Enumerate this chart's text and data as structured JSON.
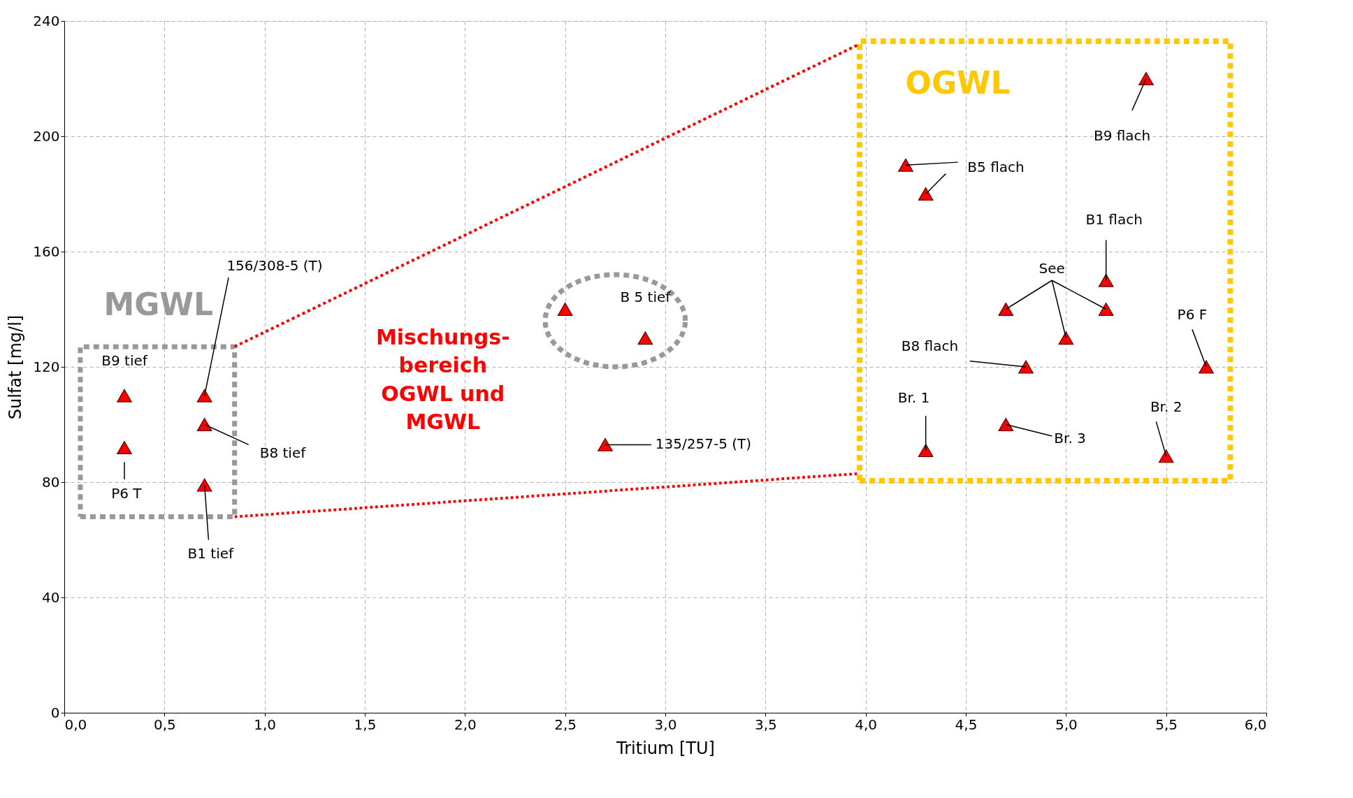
{
  "chart_data": {
    "type": "scatter",
    "xlabel": "Tritium [TU]",
    "ylabel": "Sulfat [mg/l]",
    "x": [
      0.3,
      0.3,
      0.7,
      0.7,
      0.7,
      2.5,
      2.9,
      2.7,
      4.2,
      4.3,
      5.4,
      5.2,
      4.7,
      5.0,
      5.2,
      4.8,
      5.7,
      4.3,
      4.7,
      5.5
    ],
    "series": [
      {
        "color": "#ff0000",
        "values": [
          110,
          92,
          110,
          100,
          79,
          140,
          130,
          93,
          190,
          180,
          220,
          150,
          140,
          130,
          140,
          120,
          120,
          91,
          100,
          89
        ]
      }
    ],
    "marker": "triangle",
    "grid": true,
    "legend": false,
    "xlim": [
      0,
      6
    ],
    "ylim": [
      0,
      240
    ],
    "xticks": [
      {
        "value": 0,
        "label": "0,0"
      },
      {
        "value": 0.5,
        "label": "0,5"
      },
      {
        "value": 1,
        "label": "1,0"
      },
      {
        "value": 1.5,
        "label": "1,5"
      },
      {
        "value": 2,
        "label": "2,0"
      },
      {
        "value": 2.5,
        "label": "2,5"
      },
      {
        "value": 3,
        "label": "3,0"
      },
      {
        "value": 3.5,
        "label": "3,5"
      },
      {
        "value": 4,
        "label": "4,0"
      },
      {
        "value": 4.5,
        "label": "4,5"
      },
      {
        "value": 5,
        "label": "5,0"
      },
      {
        "value": 5.5,
        "label": "5,5"
      },
      {
        "value": 6,
        "label": "6,0"
      }
    ],
    "yticks": [
      0,
      40,
      80,
      120,
      160,
      200,
      240
    ],
    "annotations": [
      {
        "text": "B9 tief",
        "x": 0.3,
        "y": 110
      },
      {
        "text": "P6 T",
        "x": 0.3,
        "y": 92
      },
      {
        "text": "156/308-5 (T)",
        "x": 0.7,
        "y": 110
      },
      {
        "text": "B8 tief",
        "x": 0.7,
        "y": 100
      },
      {
        "text": "B1 tief",
        "x": 0.7,
        "y": 79
      },
      "B 5 tief",
      {
        "text": "135/257-5 (T)",
        "x": 2.7,
        "y": 93
      },
      {
        "text": "B5 flach",
        "x": 4.2,
        "y": 190
      },
      {
        "text": "B9 flach",
        "x": 5.4,
        "y": 220
      },
      {
        "text": "B1 flach",
        "x": 5.2,
        "y": 150
      },
      {
        "text": "See",
        "x": 5.0,
        "y": 130
      },
      {
        "text": "B8 flach",
        "x": 4.8,
        "y": 120
      },
      {
        "text": "P6 F",
        "x": 5.7,
        "y": 120
      },
      {
        "text": "Br. 1",
        "x": 4.3,
        "y": 91
      },
      {
        "text": "Br. 3",
        "x": 4.7,
        "y": 100
      },
      {
        "text": "Br. 2",
        "x": 5.5,
        "y": 89
      },
      "MGWL",
      "OGWL",
      "Mischungs-\nbereich\nOGWL und\nMGWL"
    ]
  }
}
